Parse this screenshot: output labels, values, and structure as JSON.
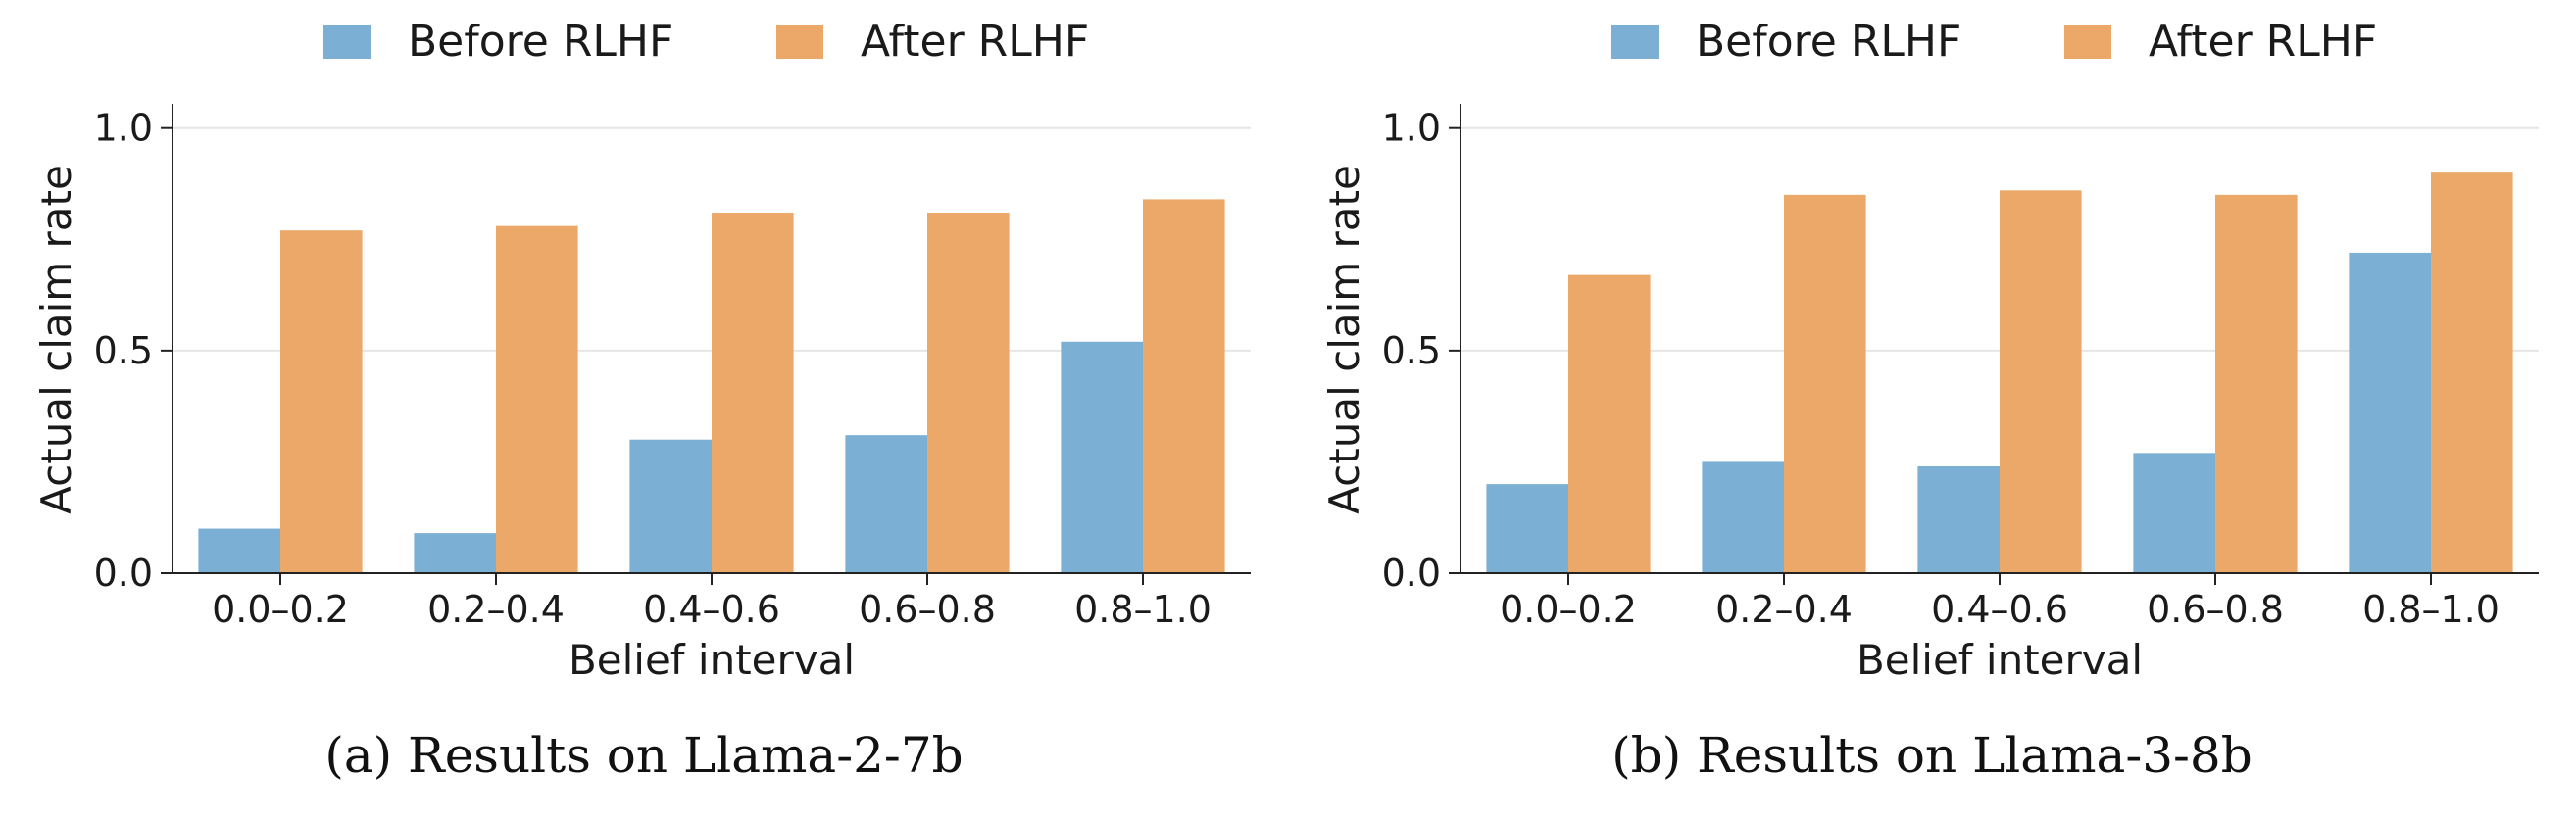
{
  "colors": {
    "before": "#7bafd4",
    "after": "#eba868",
    "grid": "#e6e6e6",
    "axis": "#222222"
  },
  "chart_data": [
    {
      "type": "bar",
      "caption": "(a) Results on Llama-2-7b",
      "xlabel": "Belief interval",
      "ylabel": "Actual claim rate",
      "ylim": [
        0,
        1.05
      ],
      "yticks": [
        "0.0",
        "0.5",
        "1.0"
      ],
      "categories": [
        "0.0–0.2",
        "0.2–0.4",
        "0.4–0.6",
        "0.6–0.8",
        "0.8–1.0"
      ],
      "legend": "top-center",
      "grid": "horizontal",
      "series": [
        {
          "name": "Before RLHF",
          "values": [
            0.1,
            0.09,
            0.3,
            0.31,
            0.52
          ]
        },
        {
          "name": "After RLHF",
          "values": [
            0.77,
            0.78,
            0.81,
            0.81,
            0.84
          ]
        }
      ]
    },
    {
      "type": "bar",
      "caption": "(b) Results on Llama-3-8b",
      "xlabel": "Belief interval",
      "ylabel": "Actual claim rate",
      "ylim": [
        0,
        1.05
      ],
      "yticks": [
        "0.0",
        "0.5",
        "1.0"
      ],
      "categories": [
        "0.0–0.2",
        "0.2–0.4",
        "0.4–0.6",
        "0.6–0.8",
        "0.8–1.0"
      ],
      "legend": "top-center",
      "grid": "horizontal",
      "series": [
        {
          "name": "Before RLHF",
          "values": [
            0.2,
            0.25,
            0.24,
            0.27,
            0.72
          ]
        },
        {
          "name": "After RLHF",
          "values": [
            0.67,
            0.85,
            0.86,
            0.85,
            0.9
          ]
        }
      ]
    }
  ]
}
